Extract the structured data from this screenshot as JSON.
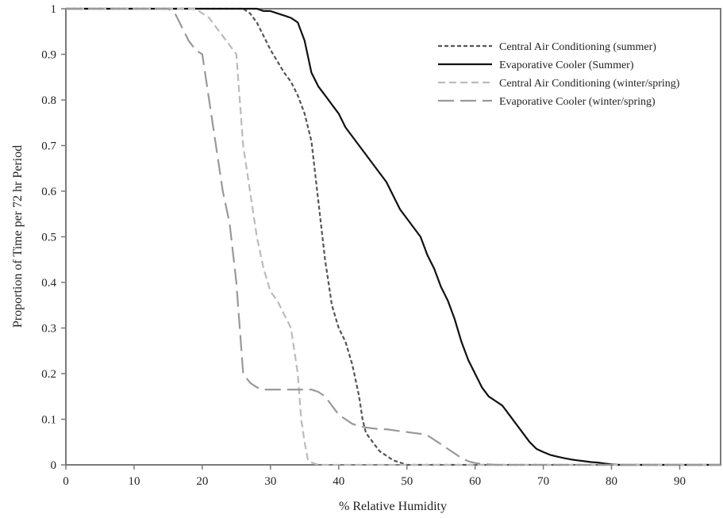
{
  "chart_data": {
    "type": "line",
    "xlabel": "% Relative Humidity",
    "ylabel": "Proportion of Time per 72 hr Period",
    "xlim": [
      0,
      96
    ],
    "ylim": [
      0,
      1
    ],
    "xticks": [
      0,
      10,
      20,
      30,
      40,
      50,
      60,
      70,
      80,
      90
    ],
    "yticks": [
      0,
      0.1,
      0.2,
      0.3,
      0.4,
      0.5,
      0.6,
      0.7,
      0.8,
      0.9,
      1
    ],
    "ytick_labels": [
      "0",
      "0.1",
      "0.2",
      "0.3",
      "0.4",
      "0.5",
      "0.6",
      "0.7",
      "0.8",
      "0.9",
      "1"
    ],
    "grid": false,
    "legend_position": "top-right",
    "series": [
      {
        "name": "Central Air Conditioning (summer)",
        "color": "#555555",
        "dash": "short-dash",
        "x": [
          0,
          26,
          27,
          28,
          29,
          30,
          31,
          32,
          33,
          34,
          35,
          36,
          37,
          38,
          39,
          40,
          41,
          42,
          43,
          43.5,
          44,
          45,
          46,
          47,
          48,
          49,
          50,
          96
        ],
        "y": [
          1,
          1,
          0.99,
          0.97,
          0.94,
          0.91,
          0.885,
          0.86,
          0.84,
          0.81,
          0.77,
          0.71,
          0.58,
          0.45,
          0.35,
          0.3,
          0.27,
          0.22,
          0.15,
          0.1,
          0.07,
          0.05,
          0.03,
          0.02,
          0.01,
          0.005,
          0,
          0
        ]
      },
      {
        "name": "Evaporative Cooler (Summer)",
        "color": "#111111",
        "dash": "solid",
        "x": [
          0,
          28,
          29,
          30,
          31,
          32,
          33,
          34,
          35,
          36,
          37,
          38,
          39,
          40,
          41,
          42,
          43,
          44,
          45,
          46,
          47,
          48,
          49,
          50,
          51,
          52,
          53,
          54,
          55,
          56,
          57,
          58,
          59,
          60,
          61,
          62,
          63,
          64,
          65,
          66,
          67,
          68,
          69,
          70,
          71,
          72,
          73,
          74,
          75,
          76,
          77,
          78,
          79,
          80,
          81,
          82,
          96
        ],
        "y": [
          1,
          1,
          0.995,
          0.995,
          0.99,
          0.985,
          0.98,
          0.97,
          0.93,
          0.86,
          0.83,
          0.81,
          0.79,
          0.77,
          0.74,
          0.72,
          0.7,
          0.68,
          0.66,
          0.64,
          0.62,
          0.59,
          0.56,
          0.54,
          0.52,
          0.5,
          0.46,
          0.43,
          0.39,
          0.36,
          0.32,
          0.27,
          0.23,
          0.2,
          0.17,
          0.15,
          0.14,
          0.13,
          0.11,
          0.09,
          0.07,
          0.05,
          0.035,
          0.028,
          0.022,
          0.018,
          0.015,
          0.012,
          0.01,
          0.008,
          0.006,
          0.005,
          0.003,
          0.001,
          0,
          0,
          0
        ]
      },
      {
        "name": "Central Air Conditioning (winter/spring)",
        "color": "#bbbbbb",
        "dash": "dash",
        "x": [
          0,
          19,
          20,
          21,
          22,
          23,
          24,
          25,
          25.5,
          26,
          27,
          28,
          29,
          30,
          31,
          32,
          33,
          33.5,
          34,
          34.5,
          35,
          35.5,
          36,
          37,
          96
        ],
        "y": [
          1,
          1,
          0.99,
          0.98,
          0.96,
          0.94,
          0.92,
          0.9,
          0.8,
          0.7,
          0.6,
          0.5,
          0.43,
          0.38,
          0.36,
          0.33,
          0.3,
          0.25,
          0.2,
          0.1,
          0.05,
          0.01,
          0.005,
          0,
          0
        ]
      },
      {
        "name": "Evaporative Cooler (winter/spring)",
        "color": "#999999",
        "dash": "long-dash",
        "x": [
          0,
          15,
          16,
          17,
          18,
          19,
          20,
          21,
          22,
          23,
          24,
          25,
          26,
          27,
          28,
          29,
          30,
          31,
          32,
          33,
          34,
          35,
          36,
          37,
          38,
          39,
          40,
          41,
          42,
          43,
          44,
          45,
          46,
          47,
          48,
          49,
          50,
          51,
          52,
          53,
          54,
          55,
          56,
          57,
          58,
          59,
          60,
          61,
          62,
          63,
          64,
          96
        ],
        "y": [
          1,
          1,
          0.99,
          0.96,
          0.93,
          0.91,
          0.9,
          0.8,
          0.7,
          0.6,
          0.53,
          0.4,
          0.2,
          0.18,
          0.17,
          0.165,
          0.165,
          0.165,
          0.165,
          0.165,
          0.165,
          0.165,
          0.165,
          0.16,
          0.15,
          0.13,
          0.11,
          0.1,
          0.09,
          0.085,
          0.082,
          0.08,
          0.078,
          0.078,
          0.076,
          0.074,
          0.072,
          0.07,
          0.068,
          0.065,
          0.055,
          0.045,
          0.035,
          0.025,
          0.015,
          0.008,
          0.004,
          0.002,
          0.001,
          0,
          0,
          0
        ]
      }
    ]
  }
}
